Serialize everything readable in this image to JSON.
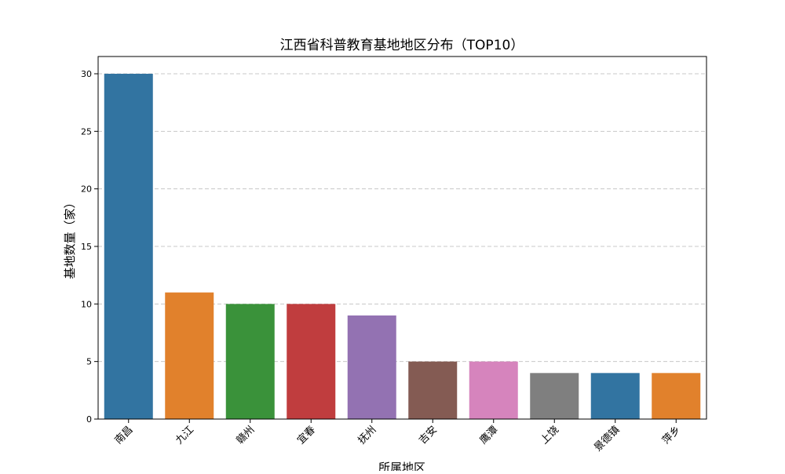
{
  "chart_data": {
    "type": "bar",
    "title": "江西省科普教育基地地区分布（TOP10）",
    "xlabel": "所属地区",
    "ylabel": "基地数量（家）",
    "categories": [
      "南昌",
      "九江",
      "赣州",
      "宜春",
      "抚州",
      "吉安",
      "鹰潭",
      "上饶",
      "景德镇",
      "萍乡"
    ],
    "values": [
      30,
      11,
      10,
      10,
      9,
      5,
      5,
      4,
      4,
      4
    ],
    "colors": [
      "#3274a1",
      "#e1812c",
      "#3a923a",
      "#c03d3e",
      "#9372b2",
      "#845b53",
      "#d684bd",
      "#7f7f7f",
      "#3274a1",
      "#e1812c"
    ],
    "ylim": [
      0,
      31.5
    ],
    "yticks": [
      0,
      5,
      10,
      15,
      20,
      25,
      30
    ],
    "grid": "y-dashed",
    "legend": "none"
  }
}
